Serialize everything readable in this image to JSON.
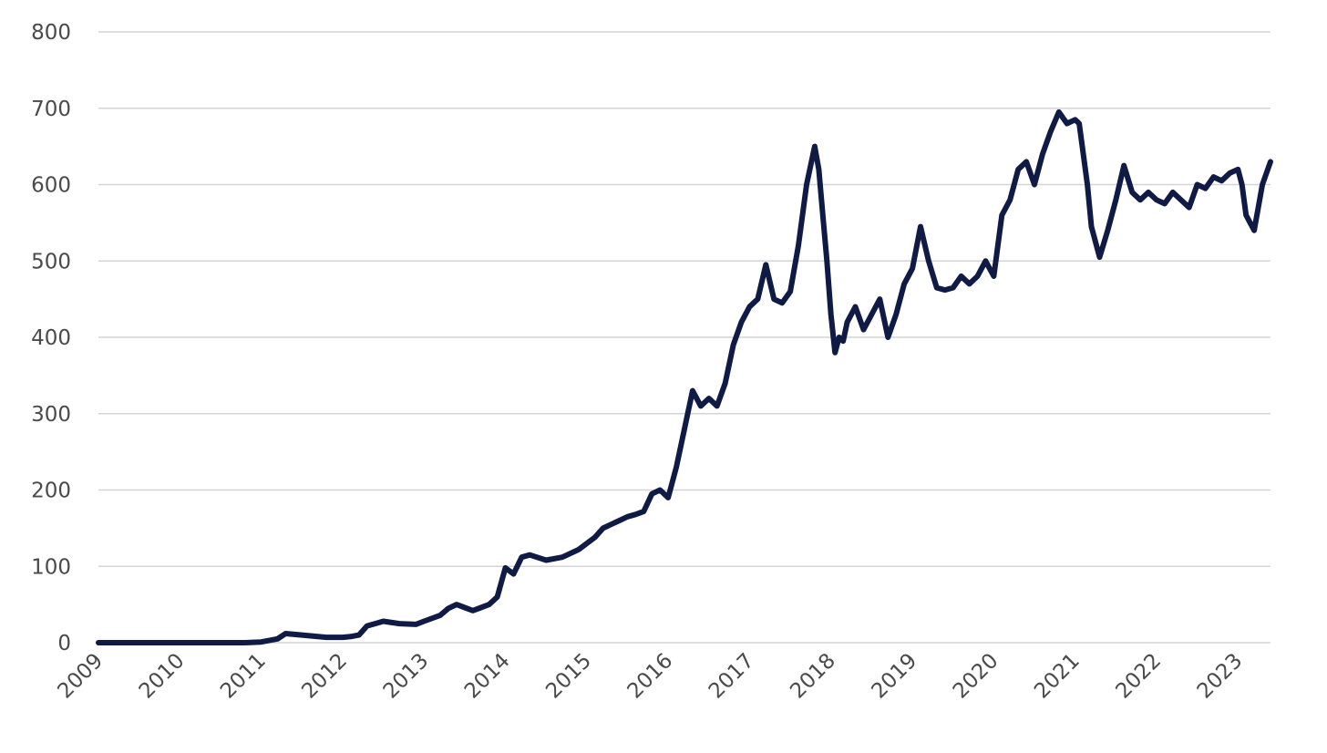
{
  "colors": {
    "series": "#0f1a45",
    "grid": "#d4d4d8",
    "text": "#4a4a4a"
  },
  "chart_data": {
    "type": "line",
    "title": "",
    "xlabel": "",
    "ylabel": "",
    "xlim": [
      2009,
      2023.4
    ],
    "ylim": [
      0,
      800
    ],
    "grid": "horizontal",
    "legend": "none",
    "x_ticks": [
      "2009",
      "2010",
      "2011",
      "2012",
      "2013",
      "2014",
      "2015",
      "2016",
      "2017",
      "2018",
      "2019",
      "2020",
      "2021",
      "2022",
      "2023"
    ],
    "y_ticks": [
      "0",
      "100",
      "200",
      "300",
      "400",
      "500",
      "600",
      "700",
      "800"
    ],
    "series": [
      {
        "x": [
          2009.0,
          2010.0,
          2010.8,
          2011.0,
          2011.2,
          2011.3,
          2011.5,
          2011.8,
          2012.0,
          2012.1,
          2012.2,
          2012.3,
          2012.4,
          2012.5,
          2012.7,
          2012.9,
          2013.0,
          2013.2,
          2013.3,
          2013.4,
          2013.6,
          2013.7,
          2013.8,
          2013.9,
          2014.0,
          2014.1,
          2014.2,
          2014.3,
          2014.5,
          2014.7,
          2014.9,
          2015.0,
          2015.1,
          2015.2,
          2015.3,
          2015.4,
          2015.5,
          2015.6,
          2015.7,
          2015.8,
          2015.9,
          2016.0,
          2016.1,
          2016.2,
          2016.3,
          2016.4,
          2016.5,
          2016.6,
          2016.7,
          2016.8,
          2016.9,
          2017.0,
          2017.1,
          2017.2,
          2017.3,
          2017.4,
          2017.5,
          2017.6,
          2017.7,
          2017.8,
          2017.85,
          2017.9,
          2017.95,
          2018.0,
          2018.05,
          2018.1,
          2018.15,
          2018.2,
          2018.3,
          2018.4,
          2018.5,
          2018.6,
          2018.7,
          2018.8,
          2018.9,
          2019.0,
          2019.1,
          2019.2,
          2019.3,
          2019.4,
          2019.5,
          2019.6,
          2019.7,
          2019.8,
          2019.9,
          2020.0,
          2020.1,
          2020.2,
          2020.3,
          2020.4,
          2020.5,
          2020.6,
          2020.7,
          2020.8,
          2020.9,
          2021.0,
          2021.05,
          2021.1,
          2021.15,
          2021.2,
          2021.3,
          2021.4,
          2021.5,
          2021.6,
          2021.7,
          2021.8,
          2021.9,
          2022.0,
          2022.1,
          2022.2,
          2022.3,
          2022.4,
          2022.5,
          2022.6,
          2022.7,
          2022.8,
          2022.9,
          2023.0,
          2023.05,
          2023.1,
          2023.2,
          2023.3,
          2023.4
        ],
        "values": [
          0,
          0,
          0,
          1,
          5,
          12,
          10,
          7,
          7,
          8,
          10,
          22,
          25,
          28,
          25,
          24,
          28,
          36,
          45,
          50,
          42,
          46,
          50,
          60,
          98,
          90,
          112,
          115,
          108,
          112,
          122,
          130,
          138,
          150,
          155,
          160,
          165,
          168,
          172,
          195,
          200,
          190,
          230,
          280,
          330,
          310,
          320,
          310,
          340,
          390,
          420,
          440,
          450,
          495,
          450,
          445,
          460,
          520,
          600,
          650,
          620,
          560,
          500,
          430,
          380,
          400,
          395,
          420,
          440,
          410,
          430,
          450,
          400,
          430,
          470,
          490,
          545,
          500,
          465,
          462,
          465,
          480,
          470,
          480,
          500,
          480,
          560,
          580,
          620,
          630,
          600,
          640,
          670,
          695,
          680,
          685,
          680,
          640,
          600,
          545,
          505,
          540,
          580,
          625,
          590,
          580,
          590,
          580,
          575,
          590,
          580,
          570,
          600,
          595,
          610,
          605,
          615,
          620,
          600,
          560,
          540,
          600,
          630
        ]
      }
    ]
  }
}
